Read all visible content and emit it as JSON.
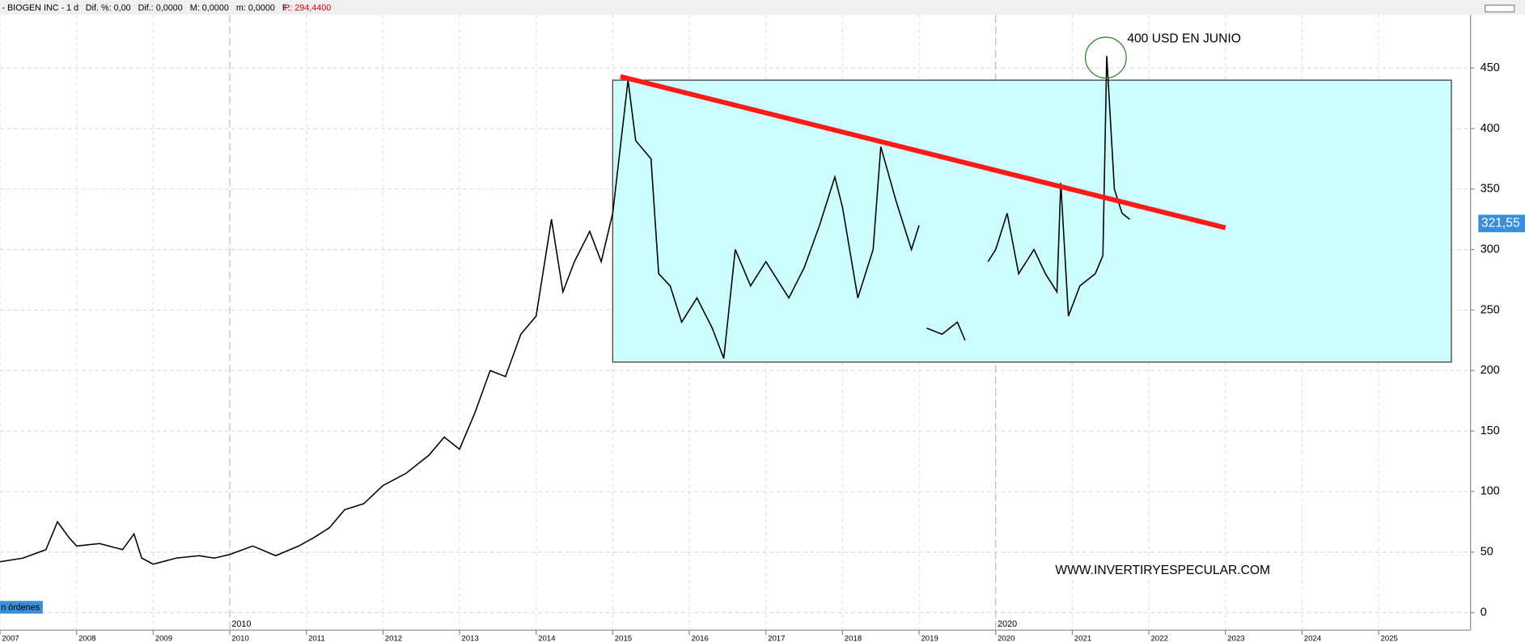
{
  "chart_data": {
    "type": "line",
    "header": {
      "symbol": "- BIOGEN INC - 1 d",
      "fields": "Dif. %: 0,00   Dif.: 0,0000   M: 0,0000   m: 0,0000   F:",
      "price": "P: 294,4400"
    },
    "annotations": {
      "peak_note": "400 USD EN JUNIO",
      "watermark": "WWW.INVERTIRYESPECULAR.COM",
      "orders": "n órdenes",
      "decade_labels": [
        {
          "value": 2010,
          "label": "2010"
        },
        {
          "value": 2020,
          "label": "2020"
        }
      ]
    },
    "last_price": {
      "value": 321.55,
      "label": "321,55"
    },
    "range_box": {
      "x": [
        2015,
        2025.95
      ],
      "y": [
        207,
        440
      ],
      "color": "#ccfcfc"
    },
    "trend_line": {
      "x": [
        2015.1,
        2023.0
      ],
      "y": [
        443,
        318
      ],
      "color": "#ff1a1a"
    },
    "x": [
      2007.0,
      2007.3,
      2007.6,
      2007.75,
      2007.9,
      2008.0,
      2008.3,
      2008.6,
      2008.75,
      2008.85,
      2009.0,
      2009.3,
      2009.6,
      2009.8,
      2010.0,
      2010.3,
      2010.6,
      2010.9,
      2011.1,
      2011.3,
      2011.5,
      2011.75,
      2012.0,
      2012.3,
      2012.6,
      2012.8,
      2013.0,
      2013.2,
      2013.4,
      2013.6,
      2013.8,
      2014.0,
      2014.2,
      2014.35,
      2014.5,
      2014.7,
      2014.85,
      2015.0,
      2015.2,
      2015.3,
      2015.5,
      2015.6,
      2015.75,
      2015.9,
      2016.1,
      2016.3,
      2016.45,
      2016.6,
      2016.8,
      2017.0,
      2017.3,
      2017.5,
      2017.7,
      2017.9,
      2018.0,
      2018.2,
      2018.4,
      2018.5,
      2018.7,
      2018.9,
      2019.0,
      2019.05,
      2019.1,
      2019.3,
      2019.5,
      2019.6,
      2019.75,
      2019.9,
      2020.0,
      2020.15,
      2020.3,
      2020.5,
      2020.65,
      2020.8,
      2020.85,
      2020.95,
      2021.1,
      2021.3,
      2021.4,
      2021.45,
      2021.55,
      2021.65,
      2021.75
    ],
    "series": [
      {
        "name": "BIOGEN INC",
        "color": "#000000",
        "values": [
          42,
          45,
          52,
          75,
          62,
          55,
          57,
          52,
          65,
          45,
          40,
          45,
          47,
          45,
          48,
          55,
          47,
          55,
          62,
          70,
          85,
          90,
          105,
          115,
          130,
          145,
          135,
          165,
          200,
          195,
          230,
          245,
          325,
          265,
          290,
          315,
          290,
          330,
          440,
          390,
          375,
          280,
          270,
          240,
          260,
          235,
          210,
          300,
          270,
          290,
          260,
          285,
          320,
          360,
          335,
          260,
          300,
          385,
          340,
          300,
          320,
          null,
          235,
          230,
          240,
          225,
          null,
          290,
          300,
          330,
          280,
          300,
          280,
          265,
          355,
          245,
          270,
          280,
          295,
          460,
          350,
          330,
          325
        ]
      }
    ],
    "xlim": [
      2007,
      2026.2
    ],
    "ylim": [
      -14.5,
      494
    ],
    "xticks": [
      2007,
      2008,
      2009,
      2010,
      2011,
      2012,
      2013,
      2014,
      2015,
      2016,
      2017,
      2018,
      2019,
      2020,
      2021,
      2022,
      2023,
      2024,
      2025
    ],
    "yticks": [
      0,
      50,
      100,
      150,
      200,
      250,
      300,
      350,
      400,
      450
    ],
    "grid": true
  }
}
